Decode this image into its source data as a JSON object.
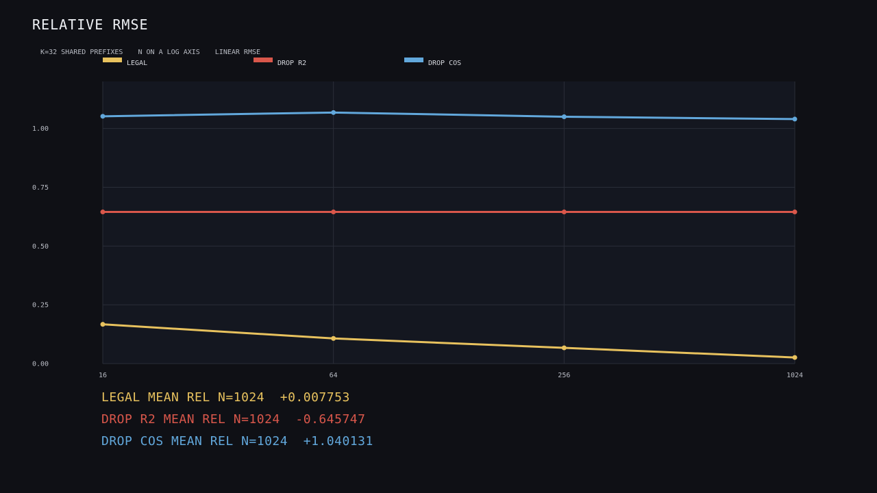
{
  "chart_data": {
    "type": "line",
    "title": "RELATIVE RMSE",
    "subtitle": [
      "K=32 SHARED PREFIXES",
      "N ON A LOG AXIS",
      "LINEAR RMSE"
    ],
    "x": [
      16,
      64,
      256,
      1024
    ],
    "x_tick_labels": [
      "16",
      "64",
      "256",
      "1024"
    ],
    "x_scale": "log",
    "y_ticks": [
      0.0,
      0.25,
      0.5,
      0.75,
      1.0
    ],
    "y_tick_labels": [
      "0.00",
      "0.25",
      "0.50",
      "0.75",
      "1.00"
    ],
    "ylim": [
      0,
      1.2
    ],
    "grid": true,
    "legend_placement": "top",
    "series": [
      {
        "name": "LEGAL",
        "color": "#e8c25e",
        "values": [
          0.167,
          0.107,
          0.067,
          0.026
        ]
      },
      {
        "name": "DROP R2",
        "color": "#d9574b",
        "values": [
          0.645,
          0.645,
          0.645,
          0.645
        ]
      },
      {
        "name": "DROP COS",
        "color": "#62a8dc",
        "values": [
          1.052,
          1.068,
          1.05,
          1.04
        ]
      }
    ]
  },
  "stats": [
    {
      "text": "LEGAL MEAN REL N=1024  +0.007753",
      "color": "#e8c25e"
    },
    {
      "text": "DROP R2 MEAN REL N=1024  -0.645747",
      "color": "#d9574b"
    },
    {
      "text": "DROP COS MEAN REL N=1024  +1.040131",
      "color": "#62a8dc"
    }
  ],
  "colors": {
    "background": "#0f1015",
    "plot_background": "#141720",
    "grid": "#2a2e38"
  }
}
